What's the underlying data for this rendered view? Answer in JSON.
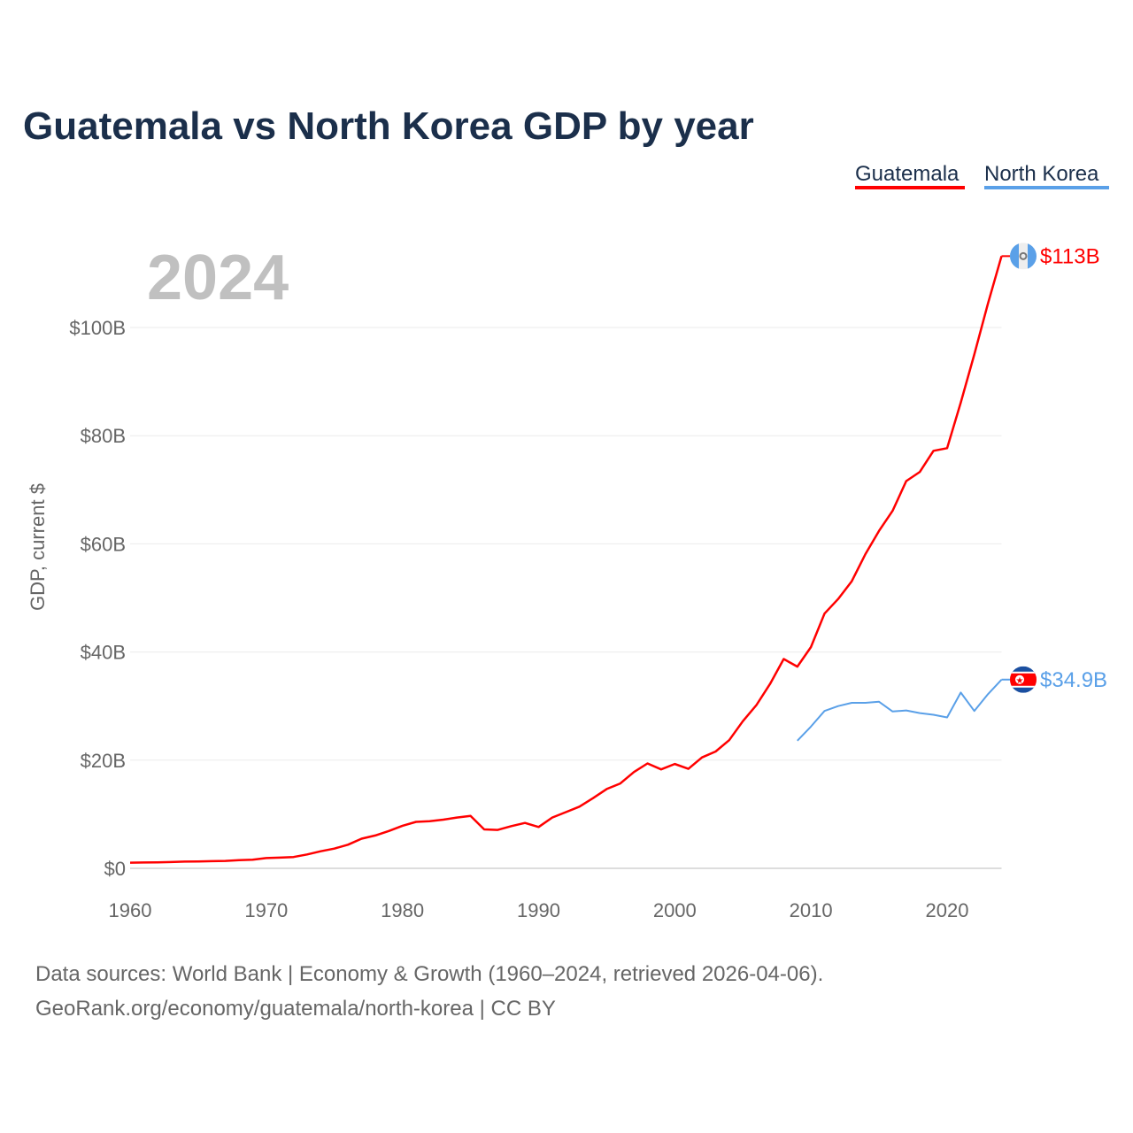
{
  "chart_data": {
    "type": "line",
    "title": "Guatemala vs North Korea GDP by year",
    "ylabel": "GDP, current $",
    "xlabel": "",
    "year_label": "2024",
    "xlim": [
      1960,
      2024
    ],
    "ylim": [
      0,
      113
    ],
    "x_ticks": [
      1960,
      1970,
      1980,
      1990,
      2000,
      2010,
      2020
    ],
    "y_ticks": [
      0,
      20,
      40,
      60,
      80,
      100
    ],
    "y_tick_labels": [
      "$0",
      "$20B",
      "$40B",
      "$60B",
      "$80B",
      "$100B"
    ],
    "grid": true,
    "legend_position": "top-right",
    "series": [
      {
        "name": "Guatemala",
        "color": "#ff0000",
        "end_label": "$113B",
        "flag": "guatemala-flag",
        "x": [
          1960,
          1961,
          1962,
          1963,
          1964,
          1965,
          1966,
          1967,
          1968,
          1969,
          1970,
          1971,
          1972,
          1973,
          1974,
          1975,
          1976,
          1977,
          1978,
          1979,
          1980,
          1981,
          1982,
          1983,
          1984,
          1985,
          1986,
          1987,
          1988,
          1989,
          1990,
          1991,
          1992,
          1993,
          1994,
          1995,
          1996,
          1997,
          1998,
          1999,
          2000,
          2001,
          2002,
          2003,
          2004,
          2005,
          2006,
          2007,
          2008,
          2009,
          2010,
          2011,
          2012,
          2013,
          2014,
          2015,
          2016,
          2017,
          2018,
          2019,
          2020,
          2021,
          2022,
          2023,
          2024
        ],
        "values": [
          1.04,
          1.08,
          1.09,
          1.17,
          1.24,
          1.27,
          1.32,
          1.38,
          1.5,
          1.6,
          1.9,
          1.98,
          2.1,
          2.57,
          3.16,
          3.65,
          4.37,
          5.48,
          6.07,
          6.9,
          7.88,
          8.6,
          8.7,
          9.0,
          9.4,
          9.7,
          7.2,
          7.1,
          7.8,
          8.4,
          7.65,
          9.4,
          10.4,
          11.4,
          12.98,
          14.66,
          15.7,
          17.8,
          19.4,
          18.3,
          19.3,
          18.4,
          20.5,
          21.6,
          23.7,
          27.2,
          30.2,
          34.1,
          38.7,
          37.3,
          40.9,
          47.1,
          49.8,
          53.1,
          58.1,
          62.4,
          66.1,
          71.6,
          73.3,
          77.2,
          77.7,
          86.1,
          95.0,
          104.4,
          113.2
        ]
      },
      {
        "name": "North Korea",
        "color": "#5aa0e8",
        "end_label": "$34.9B",
        "flag": "north-korea-flag",
        "x": [
          2009,
          2010,
          2011,
          2012,
          2013,
          2014,
          2015,
          2016,
          2017,
          2018,
          2019,
          2020,
          2021,
          2022,
          2023,
          2024
        ],
        "values": [
          23.6,
          26.2,
          29.1,
          30.0,
          30.6,
          30.6,
          30.8,
          29.0,
          29.2,
          28.7,
          28.4,
          27.9,
          32.5,
          29.1,
          32.2,
          34.9
        ]
      }
    ]
  },
  "footer": {
    "line1": "Data sources: World Bank | Economy & Growth (1960–2024, retrieved 2026-04-06).",
    "line2": "GeoRank.org/economy/guatemala/north-korea | CC BY"
  }
}
